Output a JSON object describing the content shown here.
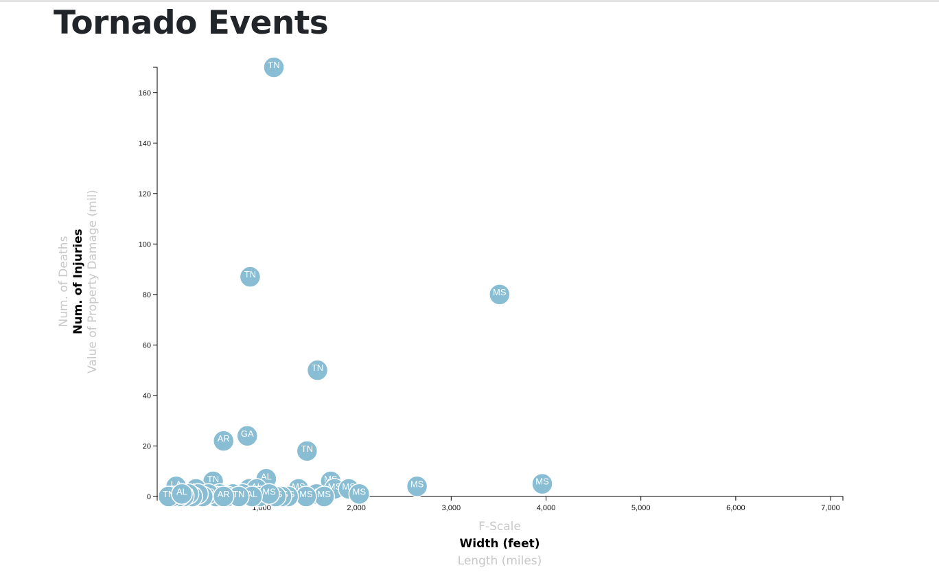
{
  "page": {
    "title": "Tornado Events"
  },
  "colors": {
    "marker": "#89bdd3",
    "marker_text": "#ffffff",
    "inactive_label": "#c8c8c8",
    "active_label": "#000000"
  },
  "chart_data": {
    "type": "scatter",
    "title": "Tornado Events",
    "x_axis": {
      "options": [
        {
          "label": "F-Scale",
          "active": false
        },
        {
          "label": "Width (feet)",
          "active": true
        },
        {
          "label": "Length (miles)",
          "active": false
        }
      ],
      "ticks": [
        "1,000",
        "2,000",
        "3,000",
        "4,000",
        "5,000",
        "6,000",
        "7,000"
      ],
      "tick_values": [
        1000,
        2000,
        3000,
        4000,
        5000,
        6000,
        7000
      ],
      "range": [
        -100,
        7130
      ]
    },
    "y_axis": {
      "options": [
        {
          "label": "Num. of Deaths",
          "active": false
        },
        {
          "label": "Num. of Injuries",
          "active": true
        },
        {
          "label": "Value of Property Damage (mil)",
          "active": false
        }
      ],
      "ticks": [
        "0",
        "20",
        "40",
        "60",
        "80",
        "100",
        "120",
        "140",
        "160"
      ],
      "tick_values": [
        0,
        20,
        40,
        60,
        80,
        100,
        120,
        140,
        160
      ],
      "range": [
        0,
        170
      ]
    },
    "grid": false,
    "points": [
      {
        "x": 1130,
        "y": 170,
        "label": "TN"
      },
      {
        "x": 880,
        "y": 87,
        "label": "TN"
      },
      {
        "x": 3510,
        "y": 80,
        "label": "MS"
      },
      {
        "x": 1590,
        "y": 50,
        "label": "TN"
      },
      {
        "x": 850,
        "y": 24,
        "label": "GA"
      },
      {
        "x": 600,
        "y": 22,
        "label": "AR"
      },
      {
        "x": 1480,
        "y": 18,
        "label": "TN"
      },
      {
        "x": 1050,
        "y": 7,
        "label": "AL"
      },
      {
        "x": 490,
        "y": 6,
        "label": "TN"
      },
      {
        "x": 1730,
        "y": 6,
        "label": "MS"
      },
      {
        "x": 3960,
        "y": 5,
        "label": "MS"
      },
      {
        "x": 2640,
        "y": 4,
        "label": "MS"
      },
      {
        "x": 100,
        "y": 4,
        "label": "LA"
      },
      {
        "x": 310,
        "y": 3,
        "label": "AL"
      },
      {
        "x": 1390,
        "y": 3,
        "label": "MS"
      },
      {
        "x": 1770,
        "y": 3,
        "label": "MS"
      },
      {
        "x": 1920,
        "y": 3,
        "label": "MS"
      },
      {
        "x": 870,
        "y": 3,
        "label": "MS"
      },
      {
        "x": 950,
        "y": 3,
        "label": "AL"
      },
      {
        "x": 1580,
        "y": 1,
        "label": "MS"
      },
      {
        "x": 2030,
        "y": 1,
        "label": "MS"
      },
      {
        "x": 1660,
        "y": 0,
        "label": "MS"
      },
      {
        "x": 1470,
        "y": 0,
        "label": "MS"
      },
      {
        "x": 1280,
        "y": 0,
        "label": "MS"
      },
      {
        "x": 1210,
        "y": 0,
        "label": "MS"
      },
      {
        "x": 1150,
        "y": 0,
        "label": "MS"
      },
      {
        "x": 800,
        "y": 1,
        "label": "MS"
      },
      {
        "x": 700,
        "y": 1,
        "label": "AL"
      },
      {
        "x": 640,
        "y": 0,
        "label": "LA"
      },
      {
        "x": 560,
        "y": 1,
        "label": "TN"
      },
      {
        "x": 520,
        "y": 0,
        "label": "AL"
      },
      {
        "x": 440,
        "y": 1,
        "label": "AR"
      },
      {
        "x": 380,
        "y": 0,
        "label": "KY"
      },
      {
        "x": 330,
        "y": 1,
        "label": "AL"
      },
      {
        "x": 270,
        "y": 0,
        "label": "TN"
      },
      {
        "x": 230,
        "y": 1,
        "label": "GA"
      },
      {
        "x": 180,
        "y": 0,
        "label": "LA"
      },
      {
        "x": 130,
        "y": 0,
        "label": "MS"
      },
      {
        "x": 60,
        "y": 0,
        "label": "AL"
      },
      {
        "x": 20,
        "y": 0,
        "label": "TN"
      },
      {
        "x": 980,
        "y": 0,
        "label": "GA"
      },
      {
        "x": 1080,
        "y": 1,
        "label": "MS"
      },
      {
        "x": 900,
        "y": 0,
        "label": "AL"
      },
      {
        "x": 760,
        "y": 0,
        "label": "TN"
      },
      {
        "x": 600,
        "y": 0,
        "label": "AR"
      },
      {
        "x": 160,
        "y": 1,
        "label": "AL"
      }
    ]
  }
}
